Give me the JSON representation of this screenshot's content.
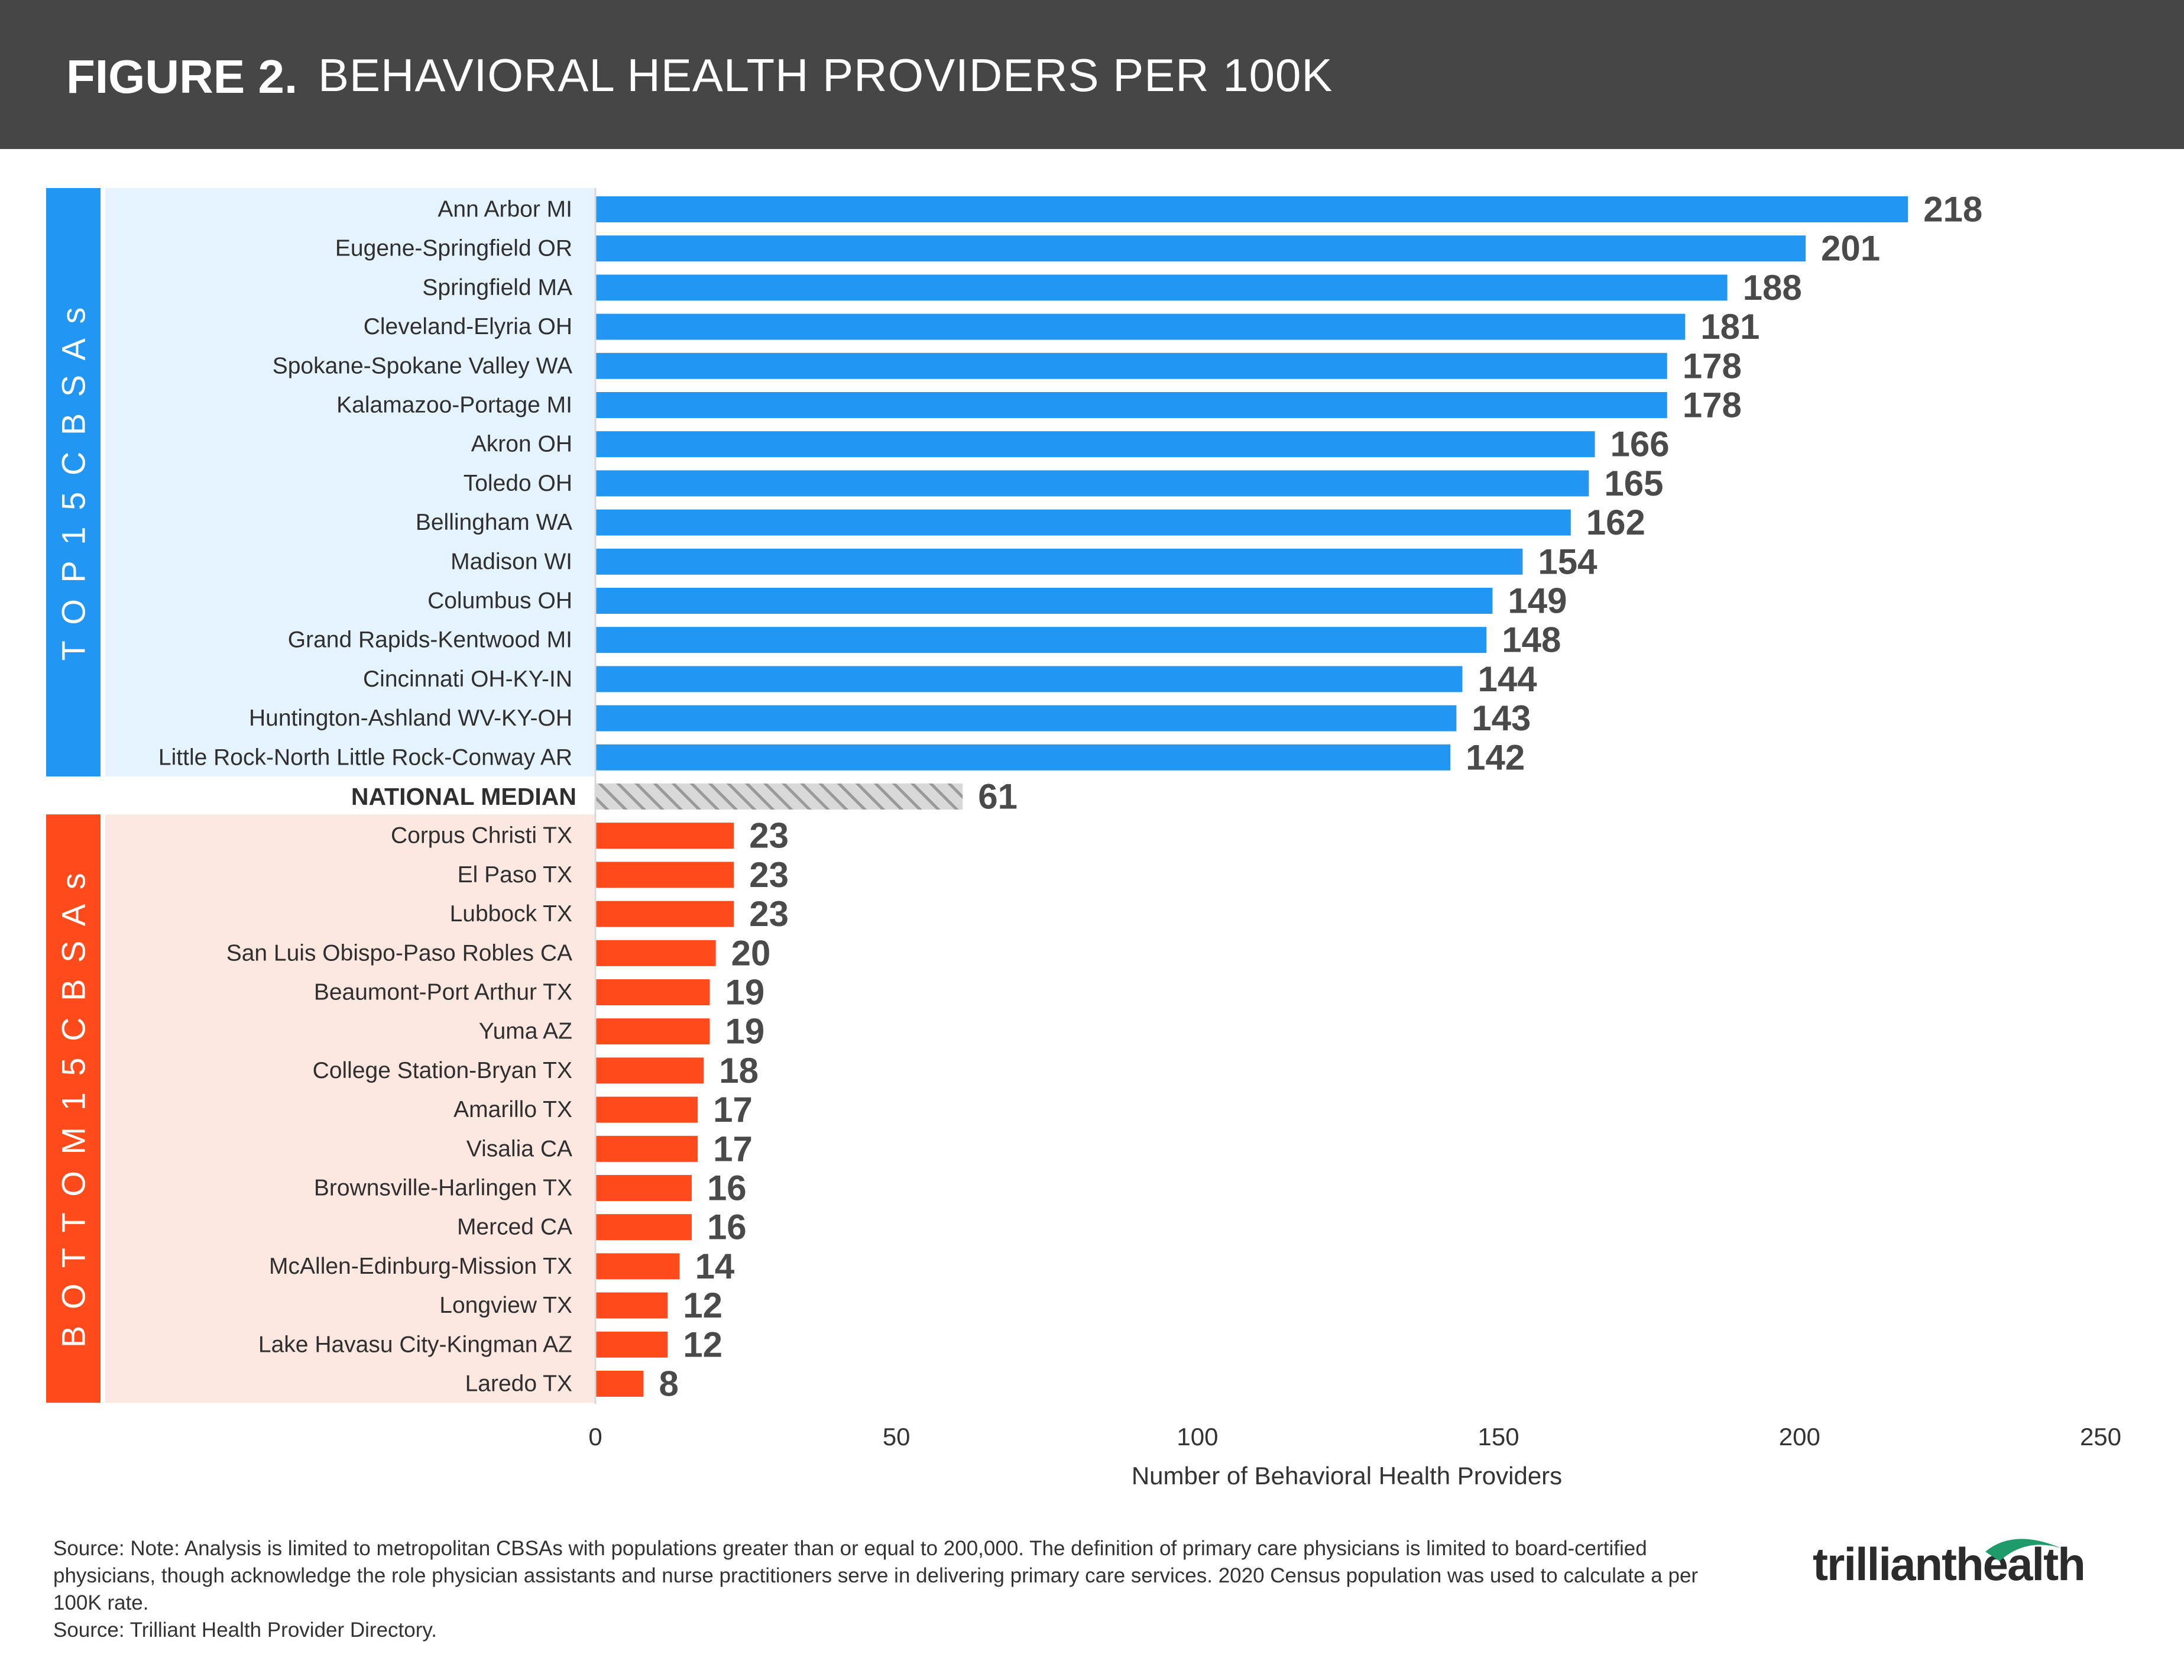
{
  "header": {
    "figure_label": "FIGURE 2.",
    "title": "BEHAVIORAL HEALTH PROVIDERS PER 100K"
  },
  "chart_data": {
    "type": "bar",
    "orientation": "horizontal",
    "xlabel": "Number of Behavioral Health Providers",
    "xlim": [
      0,
      250
    ],
    "xticks": [
      0,
      50,
      100,
      150,
      200,
      250
    ],
    "groups": [
      {
        "name": "TOP 15 CBSAs",
        "color": "#2196f3",
        "categories": [
          "Ann Arbor MI",
          "Eugene-Springfield OR",
          "Springfield MA",
          "Cleveland-Elyria OH",
          "Spokane-Spokane Valley WA",
          "Kalamazoo-Portage MI",
          "Akron OH",
          "Toledo OH",
          "Bellingham WA",
          "Madison WI",
          "Columbus OH",
          "Grand Rapids-Kentwood MI",
          "Cincinnati OH-KY-IN",
          "Huntington-Ashland WV-KY-OH",
          "Little Rock-North Little Rock-Conway AR"
        ],
        "values": [
          218,
          201,
          188,
          181,
          178,
          178,
          166,
          165,
          162,
          154,
          149,
          148,
          144,
          143,
          142
        ]
      },
      {
        "name": "NATIONAL MEDIAN",
        "color": "#b3b3b3",
        "categories": [
          "NATIONAL MEDIAN"
        ],
        "values": [
          61
        ]
      },
      {
        "name": "BOTTOM 15 CBSAs",
        "color": "#ff4a1c",
        "categories": [
          "Corpus Christi TX",
          "El Paso TX",
          "Lubbock TX",
          "San Luis Obispo-Paso Robles CA",
          "Beaumont-Port Arthur TX",
          "Yuma AZ",
          "College Station-Bryan TX",
          "Amarillo TX",
          "Visalia CA",
          "Brownsville-Harlingen TX",
          "Merced CA",
          "McAllen-Edinburg-Mission TX",
          "Longview TX",
          "Lake Havasu City-Kingman AZ",
          "Laredo TX"
        ],
        "values": [
          23,
          23,
          23,
          20,
          19,
          19,
          18,
          17,
          17,
          16,
          16,
          14,
          12,
          12,
          8
        ]
      }
    ],
    "grid": false,
    "legend": "none"
  },
  "source": {
    "note": "Source: Note: Analysis is limited to metropolitan CBSAs with populations greater than or equal to 200,000. The definition of primary care physicians is limited to board-certified physicians, though acknowledge the role physician assistants and nurse practitioners serve in delivering primary care services. 2020 Census population was used to calculate a per 100K rate.",
    "line2": "Source: Trilliant Health Provider Directory."
  },
  "logo": {
    "text": "trillianthealth"
  }
}
